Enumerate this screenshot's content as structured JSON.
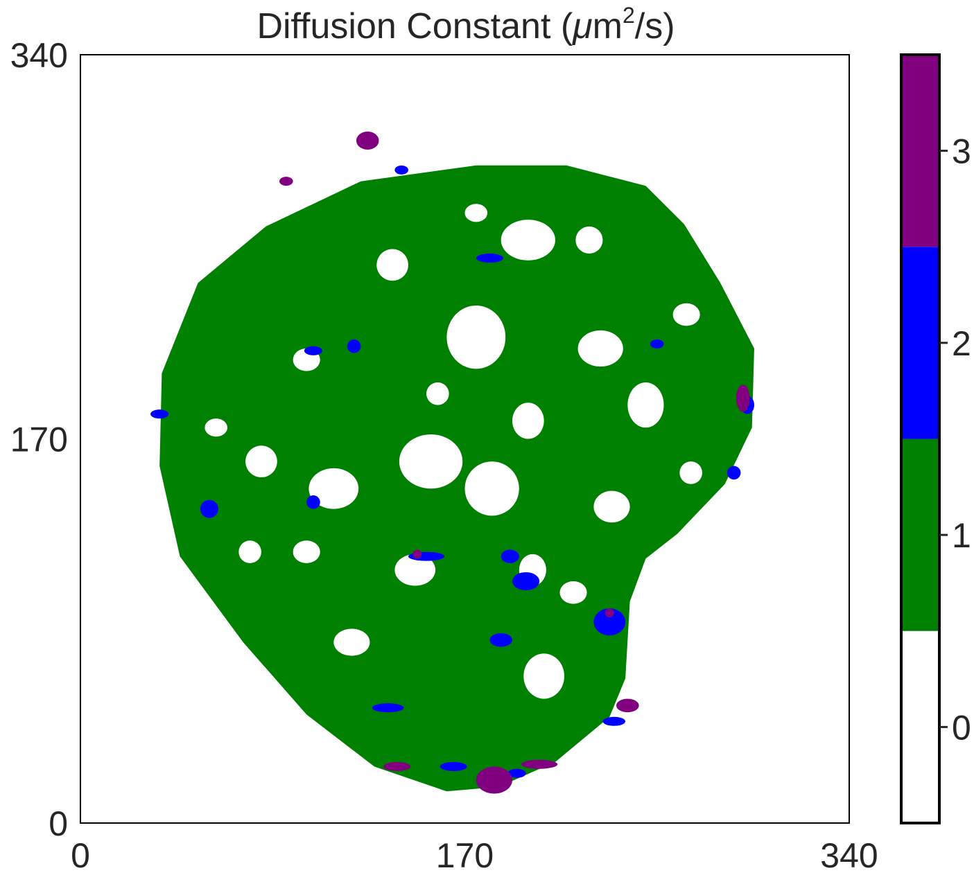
{
  "chart_data": {
    "type": "heatmap",
    "title": "Diffusion Constant (",
    "title_unit_symbol": "μ",
    "title_unit_rest": "m",
    "title_unit_exp": "2",
    "title_unit_tail": "/s)",
    "xlabel": "",
    "ylabel": "",
    "xlim": [
      0,
      340
    ],
    "ylim": [
      0,
      340
    ],
    "xticks": [
      0,
      170,
      340
    ],
    "yticks": [
      0,
      170,
      340
    ],
    "xtick_labels": [
      "0",
      "170",
      "340"
    ],
    "ytick_labels": [
      "0",
      "170",
      "340"
    ],
    "grid": false,
    "colorbar": {
      "range": [
        -0.5,
        3.5
      ],
      "ticks": [
        0,
        1,
        2,
        3
      ],
      "tick_labels": [
        "0",
        "1",
        "2",
        "3"
      ],
      "levels": [
        {
          "value": 0,
          "color": "#ffffff"
        },
        {
          "value": 1,
          "color": "#008000"
        },
        {
          "value": 2,
          "color": "#0000ff"
        },
        {
          "value": 3,
          "color": "#800080"
        }
      ]
    },
    "description_regions": {
      "level_1_region": {
        "value": 1,
        "boundary": [
          [
            175,
            291
          ],
          [
            215,
            291
          ],
          [
            250,
            282
          ],
          [
            267,
            265
          ],
          [
            283,
            239
          ],
          [
            298,
            210
          ],
          [
            297,
            175
          ],
          [
            285,
            150
          ],
          [
            264,
            128
          ],
          [
            250,
            117
          ],
          [
            243,
            98
          ],
          [
            241,
            64
          ],
          [
            234,
            47
          ],
          [
            210,
            27
          ],
          [
            185,
            16
          ],
          [
            162,
            14
          ],
          [
            130,
            25
          ],
          [
            100,
            48
          ],
          [
            72,
            80
          ],
          [
            44,
            118
          ],
          [
            35,
            158
          ],
          [
            36,
            199
          ],
          [
            52,
            239
          ],
          [
            82,
            264
          ],
          [
            124,
            284
          ]
        ]
      },
      "level_0_holes": [
        {
          "cx": 175,
          "cy": 215,
          "rx": 13,
          "ry": 14
        },
        {
          "cx": 198,
          "cy": 258,
          "rx": 12,
          "ry": 9
        },
        {
          "cx": 155,
          "cy": 160,
          "rx": 14,
          "ry": 12
        },
        {
          "cx": 182,
          "cy": 148,
          "rx": 12,
          "ry": 12
        },
        {
          "cx": 112,
          "cy": 148,
          "rx": 11,
          "ry": 9
        },
        {
          "cx": 230,
          "cy": 210,
          "rx": 10,
          "ry": 8
        },
        {
          "cx": 250,
          "cy": 185,
          "rx": 8,
          "ry": 10
        },
        {
          "cx": 138,
          "cy": 247,
          "rx": 7,
          "ry": 7
        },
        {
          "cx": 148,
          "cy": 112,
          "rx": 9,
          "ry": 7
        },
        {
          "cx": 198,
          "cy": 178,
          "rx": 7,
          "ry": 8
        },
        {
          "cx": 235,
          "cy": 140,
          "rx": 8,
          "ry": 7
        },
        {
          "cx": 80,
          "cy": 160,
          "rx": 7,
          "ry": 7
        },
        {
          "cx": 205,
          "cy": 65,
          "rx": 9,
          "ry": 10
        },
        {
          "cx": 120,
          "cy": 80,
          "rx": 8,
          "ry": 6
        },
        {
          "cx": 200,
          "cy": 112,
          "rx": 6,
          "ry": 7
        },
        {
          "cx": 225,
          "cy": 258,
          "rx": 6,
          "ry": 6
        },
        {
          "cx": 100,
          "cy": 205,
          "rx": 6,
          "ry": 5
        },
        {
          "cx": 268,
          "cy": 225,
          "rx": 6,
          "ry": 5
        },
        {
          "cx": 218,
          "cy": 102,
          "rx": 6,
          "ry": 5
        },
        {
          "cx": 158,
          "cy": 190,
          "rx": 5,
          "ry": 5
        },
        {
          "cx": 75,
          "cy": 120,
          "rx": 5,
          "ry": 5
        },
        {
          "cx": 60,
          "cy": 175,
          "rx": 5,
          "ry": 4
        },
        {
          "cx": 175,
          "cy": 270,
          "rx": 5,
          "ry": 4
        },
        {
          "cx": 270,
          "cy": 155,
          "rx": 5,
          "ry": 5
        },
        {
          "cx": 100,
          "cy": 120,
          "rx": 6,
          "ry": 5
        }
      ],
      "level_2_patches": [
        {
          "cx": 234,
          "cy": 89,
          "rx": 7,
          "ry": 6
        },
        {
          "cx": 197,
          "cy": 107,
          "rx": 6,
          "ry": 4
        },
        {
          "cx": 186,
          "cy": 81,
          "rx": 5,
          "ry": 3
        },
        {
          "cx": 153,
          "cy": 118,
          "rx": 8,
          "ry": 2
        },
        {
          "cx": 190,
          "cy": 118,
          "rx": 4,
          "ry": 3
        },
        {
          "cx": 136,
          "cy": 51,
          "rx": 7,
          "ry": 2
        },
        {
          "cx": 165,
          "cy": 25,
          "rx": 6,
          "ry": 2
        },
        {
          "cx": 57,
          "cy": 139,
          "rx": 4,
          "ry": 4
        },
        {
          "cx": 35,
          "cy": 181,
          "rx": 4,
          "ry": 2
        },
        {
          "cx": 295,
          "cy": 185,
          "rx": 3,
          "ry": 4
        },
        {
          "cx": 121,
          "cy": 211,
          "rx": 3,
          "ry": 3
        },
        {
          "cx": 236,
          "cy": 45,
          "rx": 5,
          "ry": 2
        },
        {
          "cx": 142,
          "cy": 289,
          "rx": 3,
          "ry": 2
        },
        {
          "cx": 181,
          "cy": 250,
          "rx": 6,
          "ry": 2
        },
        {
          "cx": 103,
          "cy": 142,
          "rx": 3,
          "ry": 3
        },
        {
          "cx": 255,
          "cy": 212,
          "rx": 3,
          "ry": 2
        },
        {
          "cx": 193,
          "cy": 22,
          "rx": 4,
          "ry": 2
        },
        {
          "cx": 103,
          "cy": 209,
          "rx": 4,
          "ry": 2
        },
        {
          "cx": 289,
          "cy": 155,
          "rx": 3,
          "ry": 3
        }
      ],
      "level_3_patches": [
        {
          "cx": 183,
          "cy": 19,
          "rx": 8,
          "ry": 6
        },
        {
          "cx": 127,
          "cy": 302,
          "rx": 5,
          "ry": 4
        },
        {
          "cx": 293,
          "cy": 188,
          "rx": 3,
          "ry": 6
        },
        {
          "cx": 91,
          "cy": 284,
          "rx": 3,
          "ry": 2
        },
        {
          "cx": 242,
          "cy": 52,
          "rx": 5,
          "ry": 3
        },
        {
          "cx": 140,
          "cy": 25,
          "rx": 6,
          "ry": 2
        },
        {
          "cx": 203,
          "cy": 26,
          "rx": 8,
          "ry": 2
        },
        {
          "cx": 234,
          "cy": 93,
          "rx": 2,
          "ry": 2
        },
        {
          "cx": 149,
          "cy": 119,
          "rx": 2,
          "ry": 2
        }
      ]
    }
  }
}
